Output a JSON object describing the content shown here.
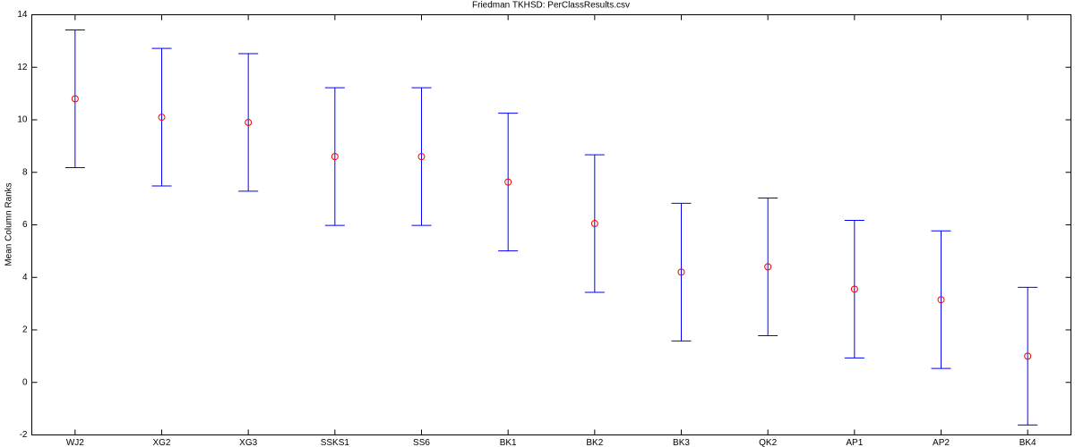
{
  "chart_data": {
    "type": "errorbar",
    "title": "Friedman TKHSD: PerClassResults.csv",
    "y_label": "Mean Column Ranks",
    "categories": [
      "WJ2",
      "XG2",
      "XG3",
      "SSKS1",
      "SS6",
      "BK1",
      "BK2",
      "BK3",
      "QK2",
      "AP1",
      "AP2",
      "BK4"
    ],
    "values": [
      10.8,
      10.1,
      9.9,
      8.6,
      8.6,
      7.63,
      6.05,
      4.2,
      4.4,
      3.55,
      3.15,
      1.0
    ],
    "errors": [
      2.62,
      2.62,
      2.62,
      2.62,
      2.62,
      2.62,
      2.62,
      2.62,
      2.62,
      2.62,
      2.62,
      2.62
    ],
    "color": "#0000ff",
    "marker_color": "#ff0000",
    "ylim": [
      -2,
      14
    ],
    "yticks": [
      -2,
      0,
      2,
      4,
      6,
      8,
      10,
      12,
      14
    ]
  }
}
